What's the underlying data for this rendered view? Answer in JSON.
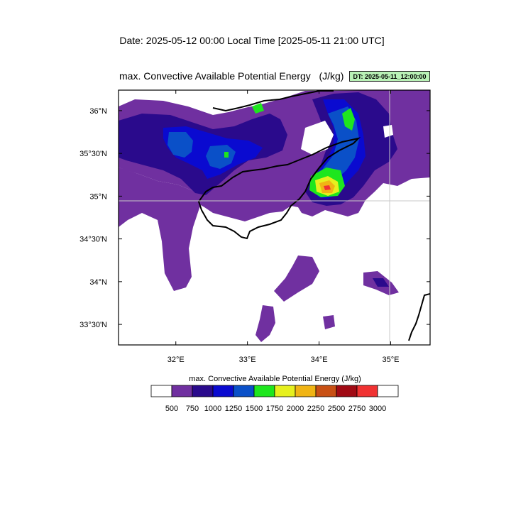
{
  "header": {
    "date_line": "Date: 2025-05-12  00:00 Local Time [2025-05-11  21:00 UTC]",
    "map_title": "max. Convective Available Potential Energy   (J/kg)",
    "dt_badge": "DT: 2025-05-11_12:00:00"
  },
  "map": {
    "variable": "max. Convective Available Potential Energy",
    "units": "J/kg",
    "longitude_range": [
      31.2,
      35.55
    ],
    "latitude_range": [
      33.26,
      36.24
    ],
    "lon_ticks": [
      {
        "value": 32,
        "label": "32°E"
      },
      {
        "value": 33,
        "label": "33°E"
      },
      {
        "value": 34,
        "label": "34°E"
      },
      {
        "value": 35,
        "label": "35°E"
      }
    ],
    "lat_ticks": [
      {
        "value": 36,
        "label": "36°N"
      },
      {
        "value": 35.5,
        "label": "35°30'N"
      },
      {
        "value": 35,
        "label": "35°N"
      },
      {
        "value": 34.5,
        "label": "34°30'N"
      },
      {
        "value": 34,
        "label": "34°N"
      },
      {
        "value": 33.5,
        "label": "33°30'N"
      }
    ],
    "gridlines": [
      {
        "lon": 35
      },
      {
        "lat": 35
      }
    ]
  },
  "colorbar": {
    "title": "max. Convective Available Potential Energy  (J/kg)",
    "levels": [
      "500",
      "750",
      "1000",
      "1250",
      "1500",
      "1750",
      "2000",
      "2250",
      "2500",
      "2750",
      "3000"
    ],
    "colors": [
      "#ffffff",
      "#7030a0",
      "#2a0a8c",
      "#0a0ad0",
      "#0a50c8",
      "#1ee61e",
      "#e6f01e",
      "#f0b414",
      "#c85014",
      "#a00a14",
      "#f03232",
      "#ffffff"
    ]
  }
}
